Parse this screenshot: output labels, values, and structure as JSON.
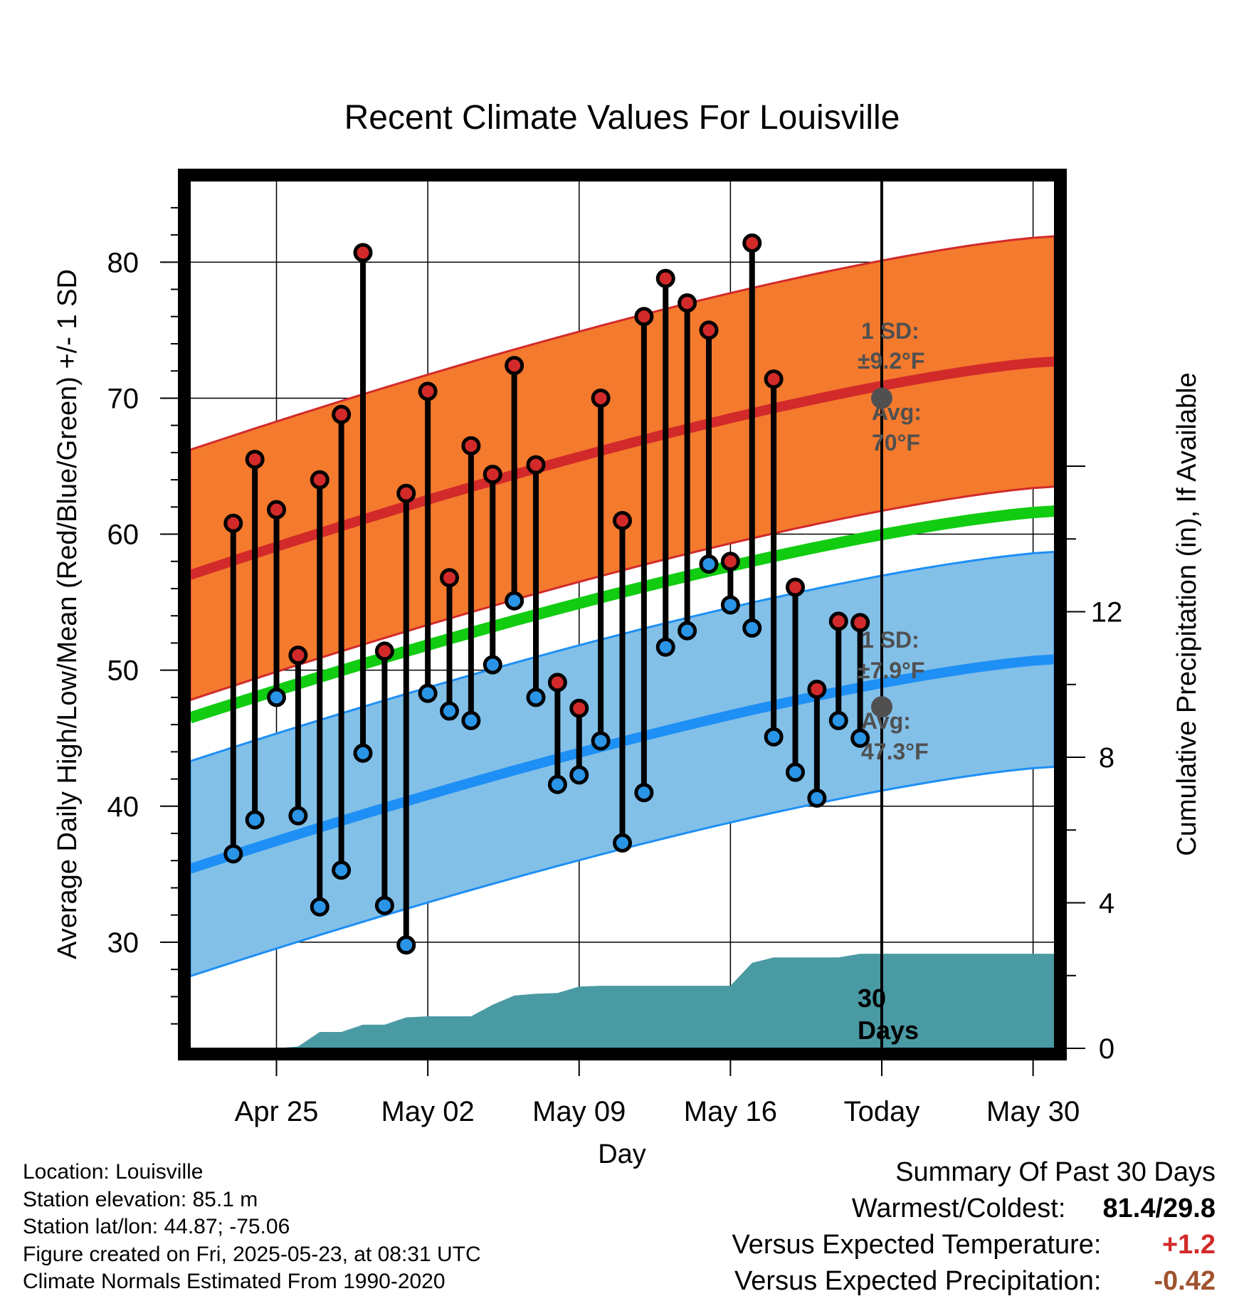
{
  "chart_data": {
    "type": "line",
    "title": "Recent Climate Values For Louisville",
    "xlabel": "Day",
    "ylabel": "Average Daily High/Low/Mean (Red/Blue/Green) +/- 1 SD",
    "y2label": "Cumulative Precipitation (in), If Available",
    "ylim": [
      22.2,
      86.4
    ],
    "y2lim": [
      0,
      24
    ],
    "xlim": [
      "2025-04-21",
      "2025-05-31"
    ],
    "x_ticks": [
      "Apr 25",
      "May 02",
      "May 09",
      "May 16",
      "Today",
      "May 30"
    ],
    "x_tick_dates": [
      "2025-04-25",
      "2025-05-02",
      "2025-05-09",
      "2025-05-16",
      "2025-05-23",
      "2025-05-30"
    ],
    "y_ticks": [
      30,
      40,
      50,
      60,
      70,
      80
    ],
    "y2_ticks": [
      0,
      4,
      8,
      12
    ],
    "grid": true,
    "today": "2025-05-23",
    "series": [
      {
        "name": "Daily High",
        "color": "#d22a2a",
        "dates": [
          "2025-04-23",
          "2025-04-24",
          "2025-04-25",
          "2025-04-26",
          "2025-04-27",
          "2025-04-28",
          "2025-04-29",
          "2025-04-30",
          "2025-05-01",
          "2025-05-02",
          "2025-05-03",
          "2025-05-04",
          "2025-05-05",
          "2025-05-06",
          "2025-05-07",
          "2025-05-08",
          "2025-05-09",
          "2025-05-10",
          "2025-05-11",
          "2025-05-12",
          "2025-05-13",
          "2025-05-14",
          "2025-05-15",
          "2025-05-16",
          "2025-05-17",
          "2025-05-18",
          "2025-05-19",
          "2025-05-20",
          "2025-05-21",
          "2025-05-22"
        ],
        "values": [
          60.8,
          65.5,
          61.8,
          51.1,
          64.0,
          68.8,
          80.7,
          51.4,
          63.0,
          70.5,
          56.8,
          66.5,
          64.4,
          72.4,
          65.1,
          49.1,
          47.2,
          70.0,
          61.0,
          76.0,
          78.8,
          77.0,
          75.0,
          58.0,
          81.4,
          71.4,
          56.1,
          48.6,
          53.6,
          53.5
        ]
      },
      {
        "name": "Daily Low",
        "color": "#2a94e6",
        "dates": [
          "2025-04-23",
          "2025-04-24",
          "2025-04-25",
          "2025-04-26",
          "2025-04-27",
          "2025-04-28",
          "2025-04-29",
          "2025-04-30",
          "2025-05-01",
          "2025-05-02",
          "2025-05-03",
          "2025-05-04",
          "2025-05-05",
          "2025-05-06",
          "2025-05-07",
          "2025-05-08",
          "2025-05-09",
          "2025-05-10",
          "2025-05-11",
          "2025-05-12",
          "2025-05-13",
          "2025-05-14",
          "2025-05-15",
          "2025-05-16",
          "2025-05-17",
          "2025-05-18",
          "2025-05-19",
          "2025-05-20",
          "2025-05-21",
          "2025-05-22"
        ],
        "values": [
          36.5,
          39.0,
          48.0,
          39.3,
          32.6,
          35.3,
          43.9,
          32.7,
          29.8,
          48.3,
          47.0,
          46.3,
          50.4,
          55.1,
          48.0,
          41.6,
          42.3,
          44.8,
          37.3,
          41.0,
          51.7,
          52.9,
          57.8,
          54.8,
          53.1,
          45.1,
          42.5,
          40.6,
          46.3,
          45.0
        ]
      }
    ],
    "normals": {
      "dates": [
        "2025-04-21",
        "2025-05-31"
      ],
      "high_avg": [
        57.0,
        72.7
      ],
      "high_sd": 9.2,
      "low_avg": [
        35.4,
        50.8
      ],
      "low_sd": 7.9,
      "mean_avg": [
        46.5,
        61.7
      ],
      "high_band_color": "#f47a2e",
      "high_line_color": "#d22a2a",
      "low_band_color": "#82c0e8",
      "low_line_color": "#1e8ff5",
      "mean_line_color": "#11cc11"
    },
    "precipitation": {
      "color": "#4a9aa4",
      "dates": [
        "2025-04-21",
        "2025-04-22",
        "2025-04-23",
        "2025-04-24",
        "2025-04-25",
        "2025-04-26",
        "2025-04-27",
        "2025-04-28",
        "2025-04-29",
        "2025-04-30",
        "2025-05-01",
        "2025-05-02",
        "2025-05-03",
        "2025-05-04",
        "2025-05-05",
        "2025-05-06",
        "2025-05-07",
        "2025-05-08",
        "2025-05-09",
        "2025-05-10",
        "2025-05-11",
        "2025-05-12",
        "2025-05-13",
        "2025-05-14",
        "2025-05-15",
        "2025-05-16",
        "2025-05-17",
        "2025-05-18",
        "2025-05-19",
        "2025-05-20",
        "2025-05-21",
        "2025-05-22",
        "2025-05-23",
        "2025-05-31"
      ],
      "values": [
        0,
        0,
        0,
        0,
        0,
        0.05,
        0.45,
        0.45,
        0.65,
        0.65,
        0.85,
        0.88,
        0.88,
        0.88,
        1.2,
        1.45,
        1.5,
        1.52,
        1.7,
        1.72,
        1.72,
        1.72,
        1.72,
        1.72,
        1.72,
        1.72,
        2.35,
        2.5,
        2.5,
        2.5,
        2.5,
        2.6,
        2.6,
        2.6
      ]
    },
    "annotations": {
      "high_sd_label": "1 SD:",
      "high_sd_value": "±9.2°F",
      "high_avg_label": "Avg:",
      "high_avg_value": "70°F",
      "high_avg_today": 70,
      "low_sd_label": "1 SD:",
      "low_sd_value": "±7.9°F",
      "low_avg_label": "Avg:",
      "low_avg_value": "47.3°F",
      "low_avg_today": 47.3,
      "days_label_1": "30",
      "days_label_2": "Days"
    }
  },
  "info": {
    "location": "Location: Louisville",
    "elevation": "Station elevation: 85.1 m",
    "latlon": "Station lat/lon: 44.87; -75.06",
    "created": "Figure created on Fri, 2025-05-23, at 08:31 UTC",
    "normals": "Climate Normals Estimated From 1990-2020"
  },
  "summary": {
    "heading": "Summary Of Past 30 Days",
    "warmest_label": "Warmest/Coldest:",
    "warmest_value": "81.4/29.8",
    "temp_label": "Versus Expected Temperature:",
    "temp_value": "+1.2",
    "temp_color": "#d22a2a",
    "precip_label": "Versus Expected Precipitation:",
    "precip_value": "-0.42",
    "precip_color": "#a0522d"
  }
}
